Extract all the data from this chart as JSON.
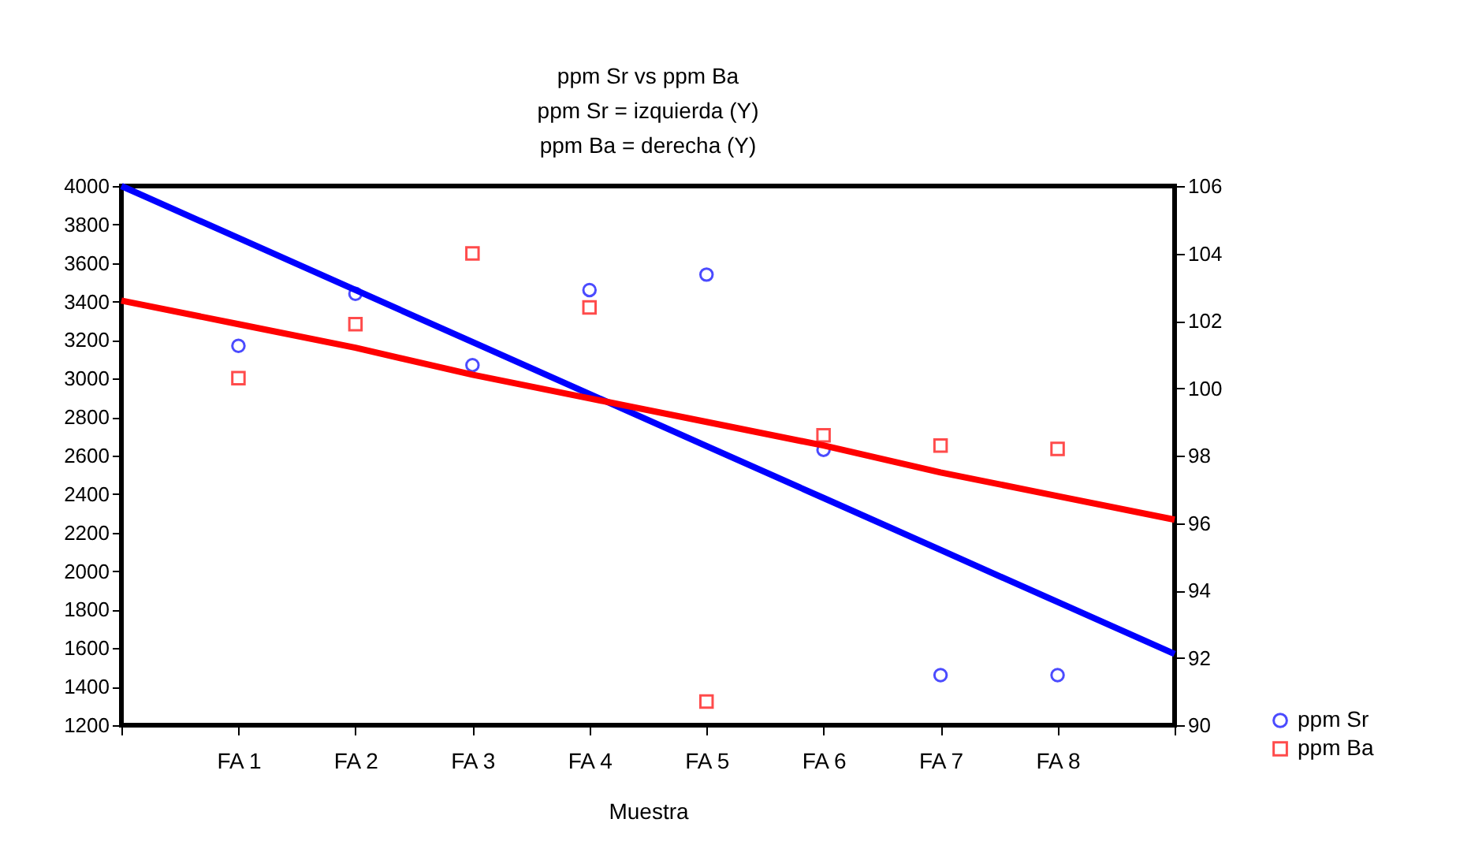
{
  "chart_data": {
    "type": "scatter",
    "title": "ppm Sr vs ppm Ba",
    "subtitle": "ppm Sr = izquierda (Y)\nppm Ba = derecha (Y)",
    "xlabel": "Muestra",
    "categories": [
      null,
      "FA 1",
      "FA 2",
      "FA 3",
      "FA 4",
      "FA 5",
      "FA 6",
      "FA 7",
      "FA 8",
      null
    ],
    "ylim": [
      1200,
      4000
    ],
    "yticks": [
      1200,
      1400,
      1600,
      1800,
      2000,
      2200,
      2400,
      2600,
      2800,
      3000,
      3200,
      3400,
      3600,
      3800,
      4000
    ],
    "y2lim": [
      90,
      106
    ],
    "y2ticks": [
      90,
      92,
      94,
      96,
      98,
      100,
      102,
      104,
      106
    ],
    "grid": false,
    "legend": "bottom right",
    "series": [
      {
        "name": "ppm Sr",
        "marker": "circle",
        "color": "#0000ff",
        "values": [
          null,
          3170,
          3440,
          3070,
          3460,
          3540,
          2630,
          1460,
          1460,
          null
        ]
      },
      {
        "type": "line",
        "color": "#0000ff",
        "values": [
          4000,
          3730,
          3460,
          3190,
          2920,
          2650,
          2380,
          2110,
          1840,
          1570
        ]
      },
      {
        "name": "ppm Ba",
        "marker": "square",
        "color": "#ff0000",
        "axis": "y2",
        "values": [
          null,
          100.3,
          101.9,
          104.0,
          102.4,
          90.7,
          98.6,
          98.3,
          98.2,
          null
        ]
      },
      {
        "type": "line",
        "color": "#ff0000",
        "axis": "y2",
        "values": [
          102.6,
          101.9,
          101.2,
          100.4,
          99.7,
          99.0,
          98.3,
          97.5,
          96.8,
          96.1
        ]
      }
    ]
  }
}
